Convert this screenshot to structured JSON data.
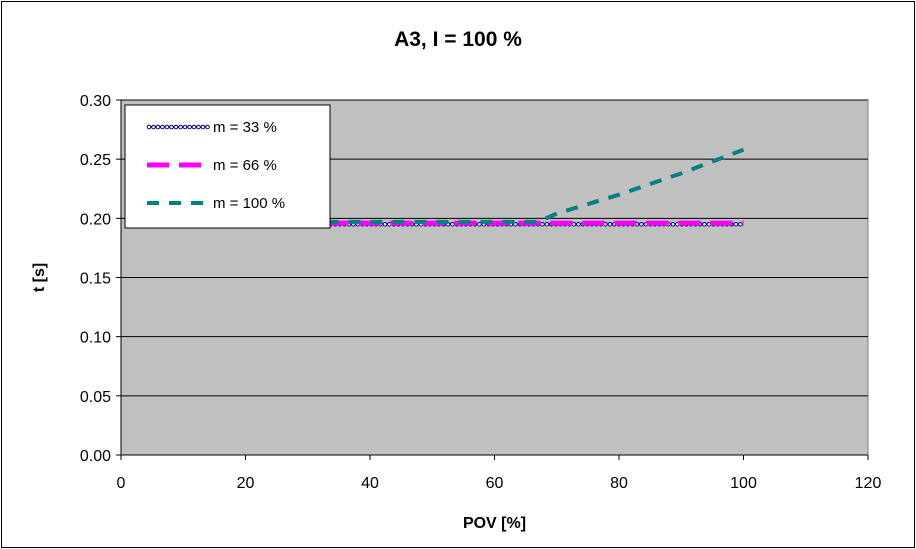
{
  "chart_data": {
    "type": "line",
    "title": "A3, I = 100 %",
    "xlabel": "POV [%]",
    "ylabel": "t [s]",
    "xlim": [
      0,
      120
    ],
    "ylim": [
      0,
      0.3
    ],
    "x_ticks": [
      "0",
      "20",
      "40",
      "60",
      "80",
      "100",
      "120"
    ],
    "y_ticks": [
      "0.00",
      "0.05",
      "0.10",
      "0.15",
      "0.20",
      "0.25",
      "0.30"
    ],
    "grid": "horizontal",
    "legend_position": "top-left",
    "plot_background": "#c0c0c0",
    "series": [
      {
        "name": "m = 33 %",
        "color": "#000080",
        "style": "solid-with-circle-markers",
        "x": [
          33,
          40,
          50,
          60,
          67,
          70,
          80,
          90,
          100
        ],
        "y": [
          0.195,
          0.195,
          0.195,
          0.195,
          0.195,
          0.195,
          0.195,
          0.195,
          0.195
        ]
      },
      {
        "name": "m = 66 %",
        "color": "#ff00ff",
        "style": "long-dash",
        "x": [
          33,
          40,
          50,
          60,
          67,
          70,
          80,
          90,
          100
        ],
        "y": [
          0.196,
          0.196,
          0.196,
          0.196,
          0.196,
          0.196,
          0.196,
          0.196,
          0.196
        ]
      },
      {
        "name": "m = 100 %",
        "color": "#008080",
        "style": "dash",
        "x": [
          33,
          40,
          50,
          60,
          67,
          70,
          80,
          90,
          100
        ],
        "y": [
          0.197,
          0.197,
          0.197,
          0.197,
          0.197,
          0.204,
          0.22,
          0.238,
          0.258
        ]
      }
    ]
  }
}
